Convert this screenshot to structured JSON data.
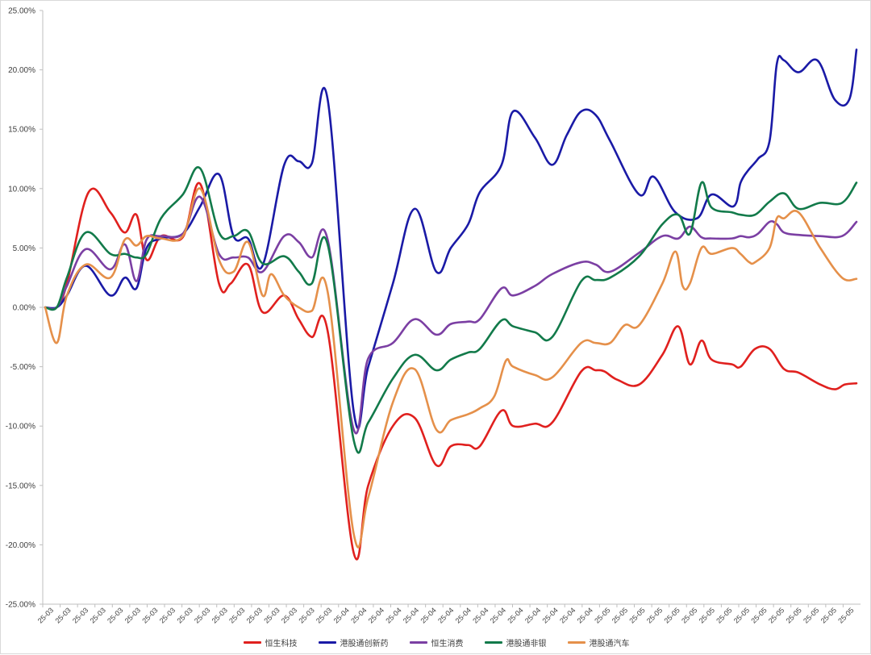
{
  "chart_data": {
    "type": "line",
    "title": "",
    "xlabel": "",
    "ylabel": "",
    "ylim": [
      -25,
      25
    ],
    "y_ticks": [
      "25.00%",
      "20.00%",
      "15.00%",
      "10.00%",
      "5.00%",
      "0.00%",
      "-5.00%",
      "-10.00%",
      "-15.00%",
      "-20.00%",
      "-25.00%"
    ],
    "y_tick_values": [
      25,
      20,
      15,
      10,
      5,
      0,
      -5,
      -10,
      -15,
      -20,
      -25
    ],
    "x_tick_labels": [
      "25-03",
      "25-03",
      "25-03",
      "25-03",
      "25-03",
      "25-03",
      "25-03",
      "25-03",
      "25-03",
      "25-03",
      "25-03",
      "25-03",
      "25-03",
      "25-03",
      "25-03",
      "25-03",
      "25-03",
      "25-04",
      "25-04",
      "25-04",
      "25-04",
      "25-04",
      "25-04",
      "25-04",
      "25-04",
      "25-04",
      "25-04",
      "25-04",
      "25-04",
      "25-04",
      "25-04",
      "25-04",
      "25-05",
      "25-05",
      "25-05",
      "25-05",
      "25-05",
      "25-05",
      "25-05",
      "25-05",
      "25-05",
      "25-05",
      "25-05",
      "25-05",
      "25-05",
      "25-05",
      "25-05"
    ],
    "grid": false,
    "legend_position": "bottom",
    "x_range": [
      0,
      56
    ],
    "series": [
      {
        "name": "恒生科技",
        "color": "#e0201e",
        "x": [
          0,
          0.8,
          1.5,
          3,
          4.5,
          5.5,
          6.3,
          7,
          8,
          9.5,
          10.7,
          12,
          12.8,
          14,
          15,
          16.5,
          17.5,
          18.4,
          19.5,
          21.3,
          22.3,
          24,
          25.5,
          27,
          28,
          29.2,
          30,
          31.5,
          32.3,
          33.8,
          35,
          37,
          38,
          38.6,
          39.5,
          41,
          42.6,
          43.7,
          44.5,
          45.3,
          46,
          47.4,
          48,
          49,
          50,
          51,
          52,
          53.5,
          54.5,
          55.2,
          56
        ],
        "values": [
          0,
          0,
          2,
          9.7,
          8,
          6.3,
          7.8,
          4,
          6,
          5.9,
          10.4,
          2,
          2,
          3.6,
          -0.4,
          1,
          -1,
          -2.5,
          -2,
          -20.7,
          -15,
          -10,
          -9.3,
          -13.3,
          -11.7,
          -11.6,
          -11.7,
          -8.7,
          -10,
          -9.8,
          -9.7,
          -5.4,
          -5.3,
          -5.4,
          -6.1,
          -6.5,
          -4,
          -1.6,
          -4.8,
          -2.8,
          -4.4,
          -4.8,
          -5,
          -3.5,
          -3.5,
          -5.2,
          -5.5,
          -6.5,
          -6.9,
          -6.5,
          -6.4
        ]
      },
      {
        "name": "港股通创新药",
        "color": "#1a1aa6",
        "x": [
          0,
          0.8,
          1.5,
          2.8,
          4.5,
          5.5,
          6.3,
          7,
          8,
          9.5,
          10.7,
          12,
          13,
          14,
          15,
          16.5,
          17.5,
          18.4,
          19.5,
          21.3,
          22.3,
          24,
          25.5,
          27,
          28,
          29.2,
          30,
          31.5,
          32.3,
          33.8,
          35,
          36,
          37,
          38,
          39,
          41,
          42,
          43.5,
          45,
          46,
          47.5,
          48,
          48.5,
          49.2,
          50,
          50.5,
          51,
          52,
          53.3,
          54.5,
          55.5,
          56
        ],
        "values": [
          0,
          0,
          1,
          3.5,
          1,
          2.5,
          1.6,
          5,
          5.8,
          6.2,
          8.5,
          11.2,
          6,
          5.8,
          3.5,
          12,
          12.3,
          12.1,
          17.5,
          -8.8,
          -5,
          2,
          8.3,
          3,
          5,
          7,
          9.7,
          12,
          16.5,
          14.3,
          12,
          14.5,
          16.5,
          16.2,
          14,
          9.5,
          11,
          8,
          7.5,
          9.5,
          8.5,
          10.5,
          11.5,
          12.5,
          14,
          20.5,
          20.8,
          19.8,
          20.8,
          17.5,
          17.5,
          21.7
        ]
      },
      {
        "name": "恒生消费",
        "color": "#7b3fa3",
        "x": [
          0,
          0.8,
          1.5,
          2.8,
          4.5,
          5.5,
          6.3,
          7,
          8,
          9.5,
          10.7,
          12,
          13,
          14,
          15,
          16.5,
          17.5,
          18.4,
          19.5,
          21.3,
          22.3,
          24,
          25.5,
          27,
          28,
          29.2,
          30,
          31.5,
          32.3,
          33.8,
          35,
          37,
          38,
          39,
          41,
          42.6,
          43.7,
          44.5,
          45.3,
          46,
          47.4,
          48,
          48.6,
          49.2,
          50,
          50.5,
          51,
          52,
          53.5,
          55,
          56
        ],
        "values": [
          0,
          0,
          1.8,
          4.9,
          3.2,
          5.3,
          2.2,
          5.7,
          6,
          6.2,
          9.3,
          4.5,
          4.2,
          4.2,
          3,
          6,
          5.5,
          4.2,
          5.7,
          -10.3,
          -4.3,
          -3,
          -1,
          -2.3,
          -1.4,
          -1.2,
          -1,
          1.6,
          1,
          1.8,
          2.8,
          3.8,
          3.6,
          3,
          4.6,
          6,
          5.8,
          6.8,
          5.9,
          5.8,
          5.8,
          6,
          5.9,
          6.2,
          7.2,
          7,
          6.3,
          6.1,
          6,
          6,
          7.2
        ]
      },
      {
        "name": "港股通非银",
        "color": "#127a4a",
        "x": [
          0,
          0.8,
          1.5,
          2.8,
          4.5,
          5.5,
          6.3,
          7,
          8,
          9.5,
          10.7,
          12,
          13,
          14,
          15,
          16.5,
          17.5,
          18.4,
          19.5,
          21.3,
          22.3,
          24,
          25.5,
          27,
          28,
          29.2,
          30,
          31.5,
          32.3,
          33.8,
          35,
          37,
          38,
          39,
          41,
          42.6,
          43.7,
          44.5,
          45.3,
          46,
          47.4,
          48,
          49,
          50,
          51,
          52,
          53.5,
          55,
          56
        ],
        "values": [
          0,
          0,
          2.5,
          6.3,
          4.5,
          4.5,
          4.2,
          4.5,
          7.5,
          9.5,
          11.7,
          6.3,
          6,
          6.4,
          3.7,
          4.3,
          3,
          2,
          5.3,
          -11.2,
          -9.7,
          -6,
          -4,
          -5.3,
          -4.4,
          -3.8,
          -3.5,
          -1.1,
          -1.6,
          -2.1,
          -2.5,
          2.2,
          2.3,
          2.5,
          4.3,
          7,
          7.8,
          6.2,
          10.5,
          8.4,
          8,
          7.8,
          7.8,
          8.9,
          9.6,
          8.3,
          8.8,
          8.8,
          10.5
        ]
      },
      {
        "name": "港股通汽车",
        "color": "#e5904a",
        "x": [
          0,
          0.8,
          1.5,
          2.8,
          4.5,
          5.5,
          6.3,
          7,
          8,
          9.5,
          10.7,
          12,
          13,
          14,
          15,
          15.6,
          16.5,
          17.5,
          18.4,
          19.5,
          21.3,
          22.3,
          24,
          25.5,
          27,
          28,
          29.2,
          30,
          31,
          31.8,
          32.3,
          33.8,
          35,
          37,
          38,
          39,
          40,
          41,
          42.6,
          43.5,
          44,
          44.5,
          45.3,
          46,
          47.4,
          48,
          48.6,
          49,
          50,
          50.5,
          51,
          52,
          53.5,
          55,
          56
        ],
        "values": [
          0,
          -3,
          1,
          3.6,
          2.5,
          5.7,
          5.2,
          6,
          5.8,
          6,
          10,
          4,
          3,
          5.5,
          1,
          2.8,
          1,
          0,
          -0.3,
          1.3,
          -19.1,
          -16,
          -8,
          -5.2,
          -10.3,
          -9.5,
          -9,
          -8.5,
          -7.5,
          -4.5,
          -5,
          -5.7,
          -5.9,
          -3,
          -3,
          -3,
          -1.5,
          -1.5,
          2,
          4.7,
          1.8,
          2,
          5,
          4.5,
          5,
          4.5,
          3.8,
          3.8,
          5,
          7.5,
          7.5,
          8,
          5,
          2.5,
          2.4
        ]
      }
    ]
  }
}
